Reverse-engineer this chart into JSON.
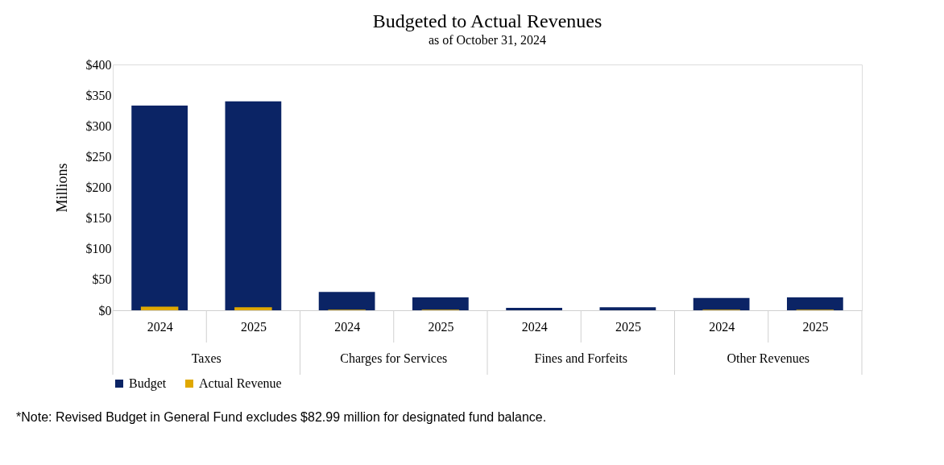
{
  "chart_data": {
    "type": "bar",
    "title": "Budgeted to Actual Revenues",
    "subtitle": "as of October 31, 2024",
    "ylabel": "Millions",
    "categories": [
      "2024",
      "2025",
      "2024",
      "2025",
      "2024",
      "2025",
      "2024",
      "2025"
    ],
    "series": [
      {
        "name": "Budget",
        "color": "#0b2465",
        "values": [
          333,
          340,
          30,
          21,
          4,
          5,
          20,
          21
        ]
      },
      {
        "name": "Actual Revenue",
        "color": "#e0a800",
        "values": [
          6,
          5,
          1,
          1,
          null,
          null,
          1,
          1
        ]
      }
    ],
    "ylim": [
      0,
      400
    ],
    "yticks": [
      {
        "value": 0,
        "label": "$0"
      },
      {
        "value": 50,
        "label": "$50"
      },
      {
        "value": 100,
        "label": "$100"
      },
      {
        "value": 150,
        "label": "$150"
      },
      {
        "value": 200,
        "label": "$200"
      },
      {
        "value": 250,
        "label": "$250"
      },
      {
        "value": 300,
        "label": "$300"
      },
      {
        "value": 350,
        "label": "$350"
      },
      {
        "value": 400,
        "label": "$400"
      }
    ],
    "grid": false,
    "legend": "bottom",
    "annotations": [
      "Taxes",
      "Charges for Services",
      "Fines and Forfeits",
      "Other Revenues",
      "*Note: Revised Budget in General Fund excludes $82.99 million for designated fund balance."
    ]
  }
}
